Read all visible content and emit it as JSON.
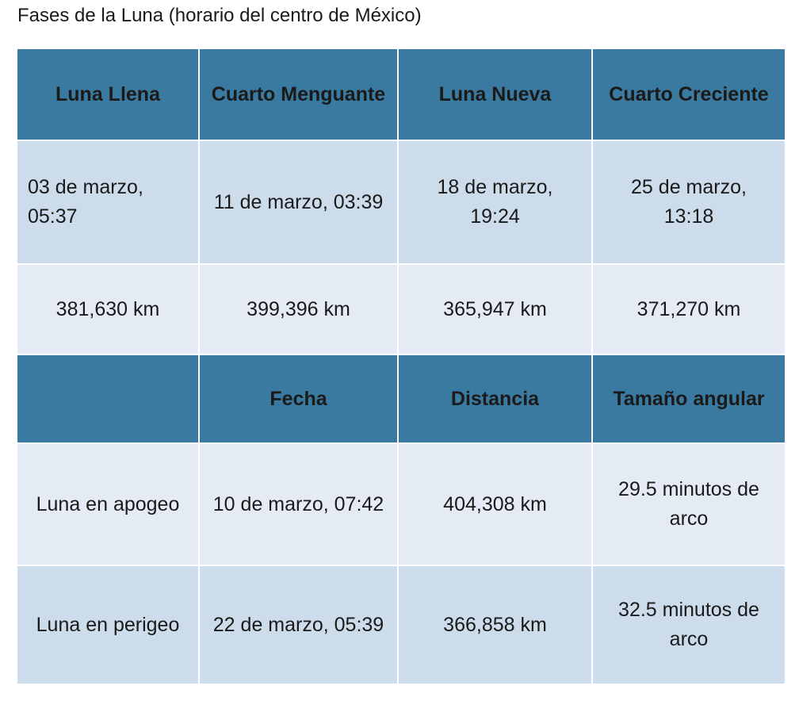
{
  "title": "Fases de la Luna (horario del centro de México)",
  "phases_table": {
    "headers": [
      "Luna Llena",
      "Cuarto Menguante",
      "Luna Nueva",
      "Cuarto Creciente"
    ],
    "dates": [
      "03 de marzo, 05:37",
      "11 de marzo, 03:39",
      "18 de marzo, 19:24",
      "25 de marzo, 13:18"
    ],
    "distances": [
      "381,630 km",
      "399,396 km",
      "365,947 km",
      "371,270 km"
    ]
  },
  "apsides_table": {
    "headers": [
      "",
      "Fecha",
      "Distancia",
      "Tamaño angular"
    ],
    "rows": [
      {
        "event": "Luna en apogeo",
        "date": "10 de marzo, 07:42",
        "distance": "404,308 km",
        "angular_size": "29.5 minutos de arco"
      },
      {
        "event": "Luna en perigeo",
        "date": "22 de marzo, 05:39",
        "distance": "366,858 km",
        "angular_size": "32.5 minutos de arco"
      }
    ]
  },
  "colors": {
    "header_bg": "#3b7aa0",
    "row_dark": "#ccdcea",
    "row_light": "#e4ebf5",
    "text": "#1a1a1a"
  }
}
